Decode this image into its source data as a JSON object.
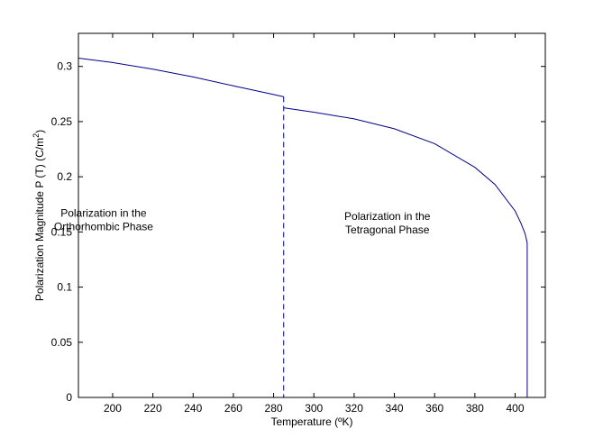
{
  "chart_data": {
    "type": "line",
    "title": "",
    "xlabel": "Temperature (ºK)",
    "ylabel_main": "Polarization Magnitude   P (T) (C/m",
    "ylabel_sup": "2",
    "ylabel_close": ")",
    "xlim": [
      183,
      415
    ],
    "ylim": [
      0,
      0.33
    ],
    "xticks": [
      200,
      220,
      240,
      260,
      280,
      300,
      320,
      340,
      360,
      380,
      400
    ],
    "yticks": [
      0,
      0.05,
      0.1,
      0.15,
      0.2,
      0.25,
      0.3
    ],
    "ytick_labels": [
      "0",
      "0.05",
      "0.1",
      "0.15",
      "0.2",
      "0.25",
      "0.3"
    ],
    "grid": false,
    "line_color": "#00008b",
    "series": [
      {
        "x": [
          183,
          200,
          220,
          240,
          260,
          280,
          285
        ],
        "y": [
          0.3075,
          0.3035,
          0.2975,
          0.2905,
          0.2825,
          0.2745,
          0.2725
        ]
      },
      {
        "x": [
          285,
          300,
          320,
          340,
          360,
          380,
          390,
          400,
          403,
          405,
          406,
          406
        ],
        "y": [
          0.2625,
          0.2585,
          0.2525,
          0.2435,
          0.23,
          0.2085,
          0.193,
          0.169,
          0.1575,
          0.148,
          0.14,
          0
        ]
      }
    ],
    "transition": {
      "x": 285,
      "y_top": 0.2725,
      "style": "dashed"
    },
    "annotations": [
      {
        "lines": [
          "Polarization in the",
          "Orthorhombic Phase"
        ],
        "x": 195.5,
        "y": 0.158
      },
      {
        "lines": [
          "Polarization in the",
          "Tetragonal Phase"
        ],
        "x": 336.5,
        "y": 0.155
      }
    ]
  }
}
